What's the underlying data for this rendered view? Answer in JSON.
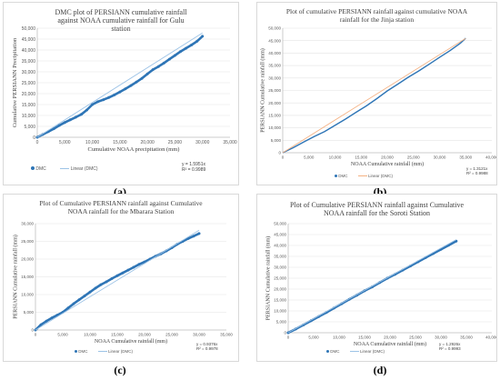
{
  "panel_labels": [
    "(a)",
    "(b)",
    "(c)",
    "(d)"
  ],
  "chart_data": [
    {
      "type": "line",
      "title": "DMC plot of PERSIANN cumulative rainfall against NOAA cumulative rainfall for Gulu station",
      "xlabel": "Cumulative NOAA precipitation (mm)",
      "ylabel": "Cumulative PERSIANN Precipitation",
      "xlim": [
        0,
        35000
      ],
      "ylim": [
        0,
        50000
      ],
      "xticks": [
        0,
        5000,
        10000,
        15000,
        20000,
        25000,
        30000,
        35000
      ],
      "xtick_labels": [
        "0",
        "5,000",
        "10,000",
        "15,000",
        "20,000",
        "25,000",
        "30,000",
        "35,000"
      ],
      "yticks": [
        0,
        5000,
        10000,
        15000,
        20000,
        25000,
        30000,
        35000,
        40000,
        45000,
        50000
      ],
      "ytick_labels": [
        "0",
        "5,000",
        "10,000",
        "15,000",
        "20,000",
        "25,000",
        "30,000",
        "35,000",
        "40,000",
        "45,000",
        "50,000"
      ],
      "legend": [
        "DMC",
        "Linear (DMC)"
      ],
      "equation": "y = 1.5951x",
      "r2": "R² = 0.9989",
      "series": [
        {
          "name": "DMC",
          "style": "markers",
          "color": "#2e75b6",
          "x": [
            0,
            1000,
            2000,
            3000,
            4000,
            5000,
            6000,
            7000,
            8000,
            9000,
            10000,
            11000,
            12000,
            13000,
            14000,
            15000,
            16000,
            17000,
            18000,
            19000,
            20000,
            21000,
            22000,
            23000,
            24000,
            25000,
            26000,
            27000,
            28000,
            29000,
            30000
          ],
          "y": [
            0,
            1300,
            2600,
            3900,
            5400,
            6800,
            8000,
            9200,
            10500,
            12500,
            15000,
            16300,
            17200,
            18200,
            19400,
            20800,
            22200,
            23700,
            25300,
            27000,
            29000,
            31000,
            32400,
            34000,
            35800,
            37500,
            39300,
            40800,
            42300,
            44000,
            46300
          ]
        },
        {
          "name": "Linear (DMC)",
          "style": "trend",
          "color": "#9dc3e6",
          "x": [
            0,
            30000
          ],
          "y": [
            0,
            47853
          ]
        }
      ]
    },
    {
      "type": "line",
      "title": "Plot of cumulative PERSIANN rainfall against cumulative NOAA rainfall for the Jinja station",
      "xlabel": "NOAA Cumulative rainfall (mm)",
      "ylabel": "PERSIANN Cumulative rainfall (mm)",
      "xlim": [
        0,
        40000
      ],
      "ylim": [
        0,
        50000
      ],
      "xticks": [
        0,
        5000,
        10000,
        15000,
        20000,
        25000,
        30000,
        35000,
        40000
      ],
      "xtick_labels": [
        "0",
        "5,000",
        "10,000",
        "15,000",
        "20,000",
        "25,000",
        "30,000",
        "35,000",
        "40,000"
      ],
      "yticks": [
        0,
        5000,
        10000,
        15000,
        20000,
        25000,
        30000,
        35000,
        40000,
        45000,
        50000
      ],
      "ytick_labels": [
        "0",
        "5,000",
        "10,000",
        "15,000",
        "20,000",
        "25,000",
        "30,000",
        "35,000",
        "40,000",
        "45,000",
        "50,000"
      ],
      "legend": [
        "DMC",
        "Linear (DMC)"
      ],
      "equation": "y = 1.3121x",
      "r2": "R² = 0.9988",
      "series": [
        {
          "name": "DMC",
          "style": "line",
          "color": "#2e75b6",
          "x": [
            0,
            2000,
            4000,
            6000,
            8000,
            10000,
            12000,
            14000,
            16000,
            18000,
            20000,
            22000,
            24000,
            26000,
            28000,
            30000,
            32000,
            34000,
            35000
          ],
          "y": [
            0,
            2000,
            4300,
            6500,
            8500,
            11000,
            13500,
            16200,
            18800,
            21700,
            24800,
            27500,
            30300,
            32800,
            35500,
            38300,
            41000,
            44000,
            46000
          ]
        },
        {
          "name": "Linear (DMC)",
          "style": "trend",
          "color": "#f4b183",
          "x": [
            0,
            35000
          ],
          "y": [
            0,
            45924
          ]
        }
      ]
    },
    {
      "type": "line",
      "title": "Plot of Cumulative PERSIANN rainfall against Cumulative NOAA rainfall for the Mbarara Station",
      "xlabel": "NOAA Cumulative rainfall (mm)",
      "ylabel": "PERSIANN Cumulative rainfall (mm)",
      "xlim": [
        0,
        35000
      ],
      "ylim": [
        0,
        30000
      ],
      "xticks": [
        0,
        5000,
        10000,
        15000,
        20000,
        25000,
        30000,
        35000
      ],
      "xtick_labels": [
        "0",
        "5,000",
        "10,000",
        "15,000",
        "20,000",
        "25,000",
        "30,000",
        "35,000"
      ],
      "yticks": [
        0,
        5000,
        10000,
        15000,
        20000,
        25000,
        30000
      ],
      "ytick_labels": [
        "0",
        "5,000",
        "10,000",
        "15,000",
        "20,000",
        "25,000",
        "30,000"
      ],
      "legend": [
        "DMC",
        "Linear (DMC)"
      ],
      "equation": "y = 0.9376x",
      "r2": "R² = 0.9978",
      "series": [
        {
          "name": "DMC",
          "style": "markers",
          "color": "#2e75b6",
          "x": [
            0,
            1000,
            2000,
            3000,
            4000,
            5000,
            6000,
            7000,
            8000,
            9000,
            10000,
            11000,
            12000,
            13000,
            14000,
            15000,
            16000,
            17000,
            18000,
            19000,
            20000,
            21000,
            22000,
            23000,
            24000,
            25000,
            26000,
            27000,
            28000,
            29000,
            30000
          ],
          "y": [
            0,
            1500,
            2500,
            3400,
            4200,
            5000,
            6200,
            7400,
            8500,
            9600,
            10700,
            11800,
            12800,
            13600,
            14500,
            15300,
            16100,
            16900,
            17700,
            18500,
            19200,
            20000,
            20800,
            21500,
            22300,
            23200,
            24200,
            25000,
            25800,
            26500,
            27200
          ]
        },
        {
          "name": "Linear (DMC)",
          "style": "trend",
          "color": "#9dc3e6",
          "x": [
            0,
            30000
          ],
          "y": [
            0,
            28128
          ]
        }
      ]
    },
    {
      "type": "line",
      "title": "Plot of Cumulative PERSIANN rainfall against Cumulative NOAA rainfall for the Soroti Station",
      "xlabel": "NOAA Cumulative rainfall (mm)",
      "ylabel": "PERSIANN Cumulative rainfall (mm)",
      "xlim": [
        0,
        40000
      ],
      "ylim": [
        0,
        50000
      ],
      "xticks": [
        0,
        5000,
        10000,
        15000,
        20000,
        25000,
        30000,
        35000,
        40000
      ],
      "xtick_labels": [
        "0",
        "5,000",
        "10,000",
        "15,000",
        "20,000",
        "25,000",
        "30,000",
        "35,000",
        "40,000"
      ],
      "yticks": [
        0,
        5000,
        10000,
        15000,
        20000,
        25000,
        30000,
        35000,
        40000,
        45000,
        50000
      ],
      "ytick_labels": [
        "0",
        "5,000",
        "10,000",
        "15,000",
        "20,000",
        "25,000",
        "30,000",
        "35,000",
        "40,000",
        "45,000",
        "50,000"
      ],
      "legend": [
        "DMC",
        "Linear (DMC)"
      ],
      "equation": "y = 1.2926x",
      "r2": "R² = 0.9993",
      "series": [
        {
          "name": "DMC",
          "style": "markers",
          "color": "#2e75b6",
          "x": [
            0,
            1500,
            3000,
            4500,
            6000,
            7500,
            9000,
            10500,
            12000,
            13500,
            15000,
            16500,
            18000,
            19500,
            21000,
            22500,
            24000,
            25500,
            27000,
            28500,
            30000,
            31500,
            33000
          ],
          "y": [
            0,
            1700,
            3600,
            5500,
            7400,
            9300,
            11300,
            13300,
            15300,
            17200,
            19200,
            21000,
            23000,
            25000,
            26800,
            28700,
            30600,
            32500,
            34400,
            36300,
            38200,
            40100,
            42000
          ]
        },
        {
          "name": "Linear (DMC)",
          "style": "trend",
          "color": "#9dc3e6",
          "x": [
            0,
            33000
          ],
          "y": [
            0,
            42656
          ]
        }
      ]
    }
  ]
}
